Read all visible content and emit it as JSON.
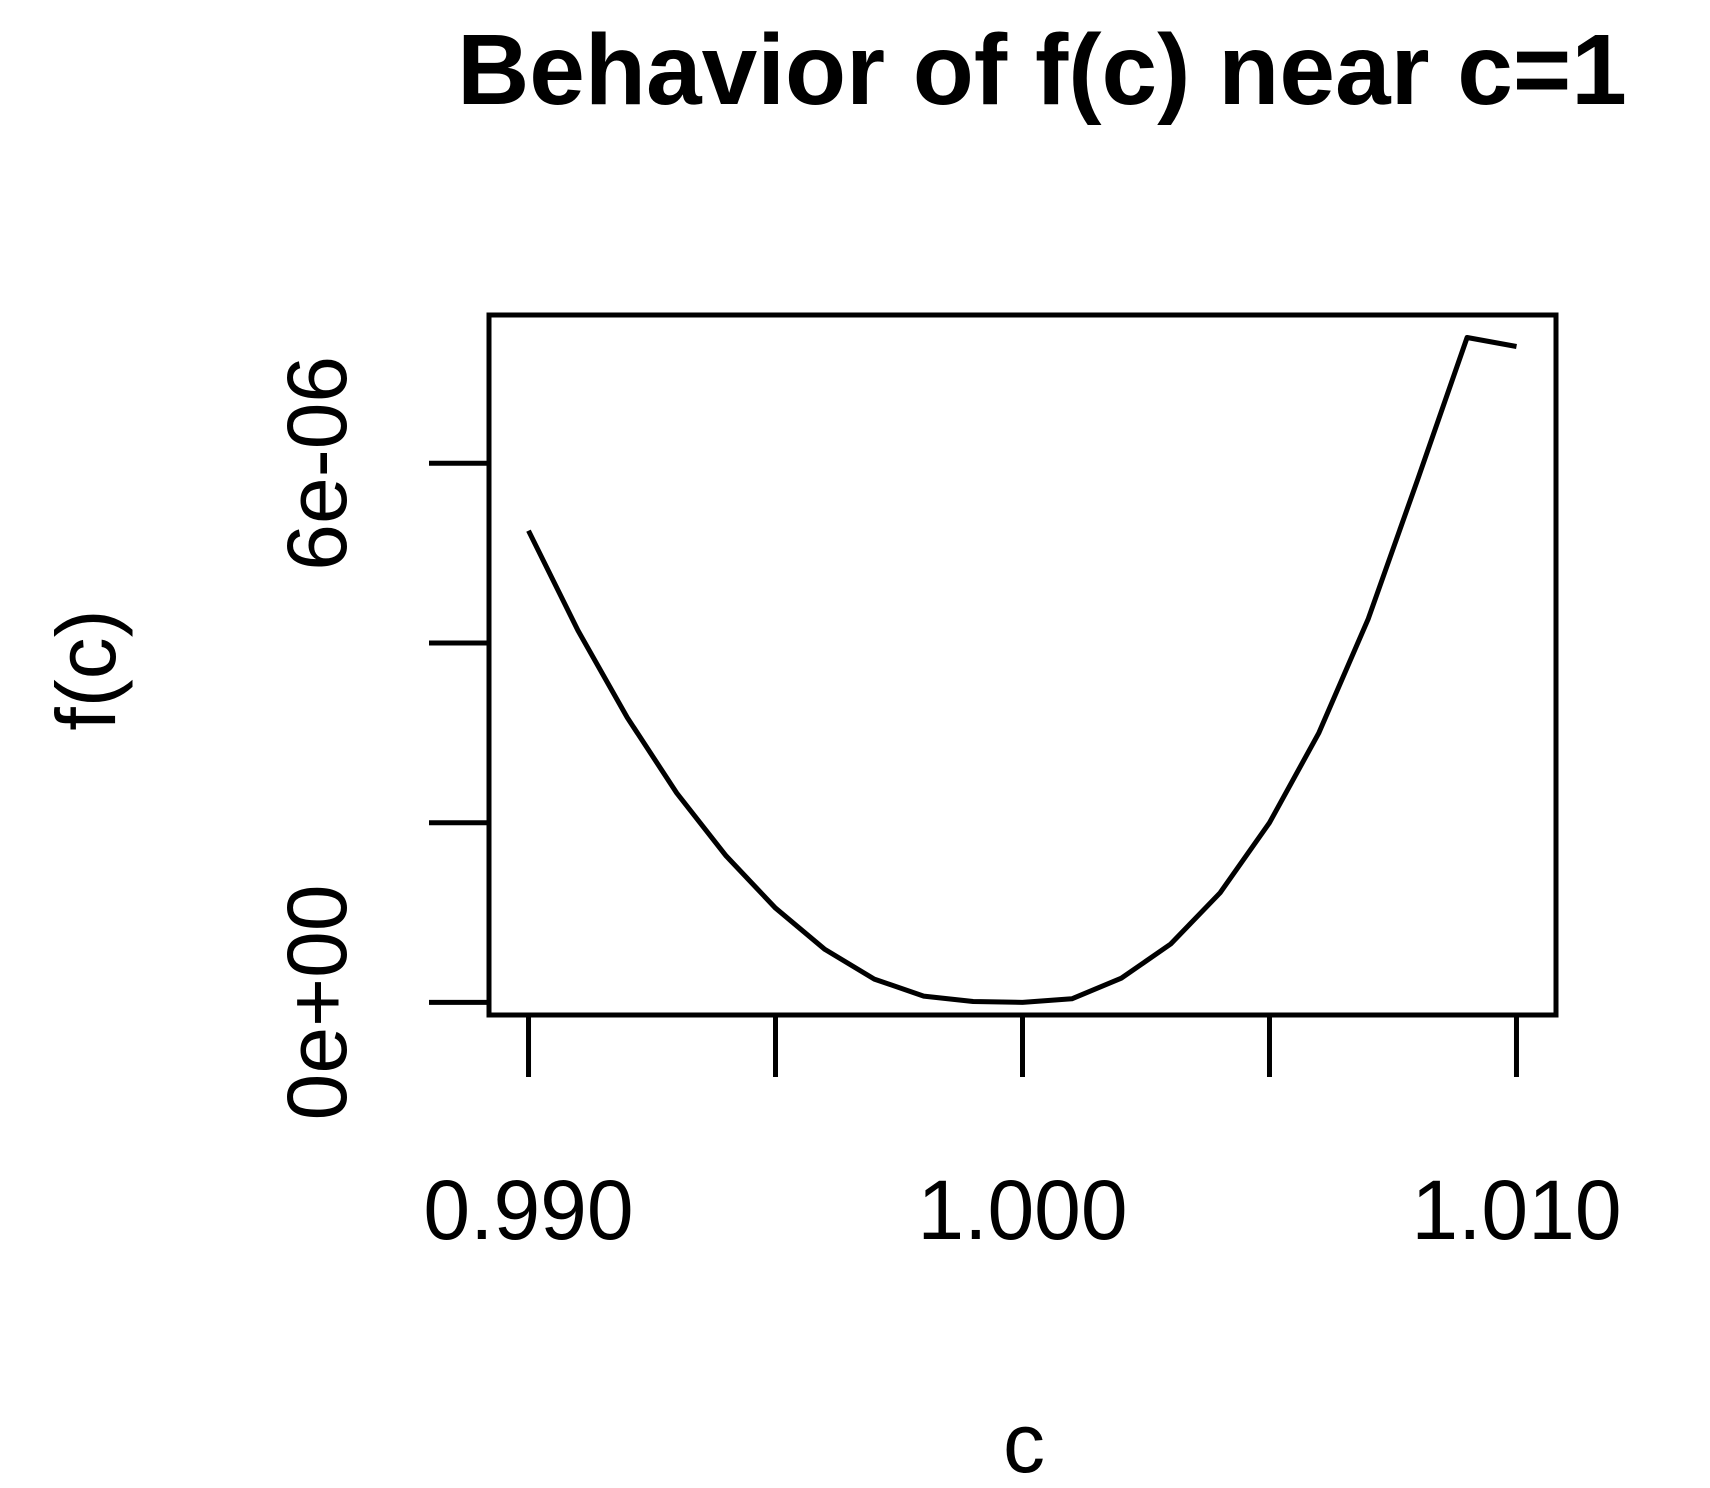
{
  "chart_data": {
    "type": "line",
    "title": "Behavior of f(c) near c=1",
    "xlabel": "c",
    "ylabel": "f(c)",
    "xlim": [
      0.9892,
      1.0108
    ],
    "ylim": [
      -1.4e-07,
      7.65e-06
    ],
    "x_ticks": [
      0.99,
      0.995,
      1.0,
      1.005,
      1.01
    ],
    "x_tick_labels": [
      "0.990",
      "",
      "1.000",
      "",
      "1.010"
    ],
    "y_ticks": [
      0,
      2e-06,
      4e-06,
      6e-06
    ],
    "y_tick_labels": [
      "0e+00",
      "",
      "",
      "6e-06"
    ],
    "grid": false,
    "series": [
      {
        "color": "#000000",
        "x": [
          0.99,
          0.991,
          0.992,
          0.993,
          0.994,
          0.995,
          0.996,
          0.997,
          0.998,
          0.999,
          1.0,
          1.001,
          1.002,
          1.003,
          1.004,
          1.005,
          1.006,
          1.007,
          1.008,
          1.009,
          1.01
        ],
        "y": [
          5.25e-06,
          4.14e-06,
          3.17e-06,
          2.33e-06,
          1.63e-06,
          1.05e-06,
          5.9e-07,
          2.6e-07,
          7e-08,
          1e-08,
          0,
          4e-08,
          2.7e-07,
          6.5e-07,
          1.22e-06,
          2e-06,
          3e-06,
          4.27e-06,
          5.82e-06,
          7.4e-06,
          7.3e-06
        ]
      }
    ]
  }
}
